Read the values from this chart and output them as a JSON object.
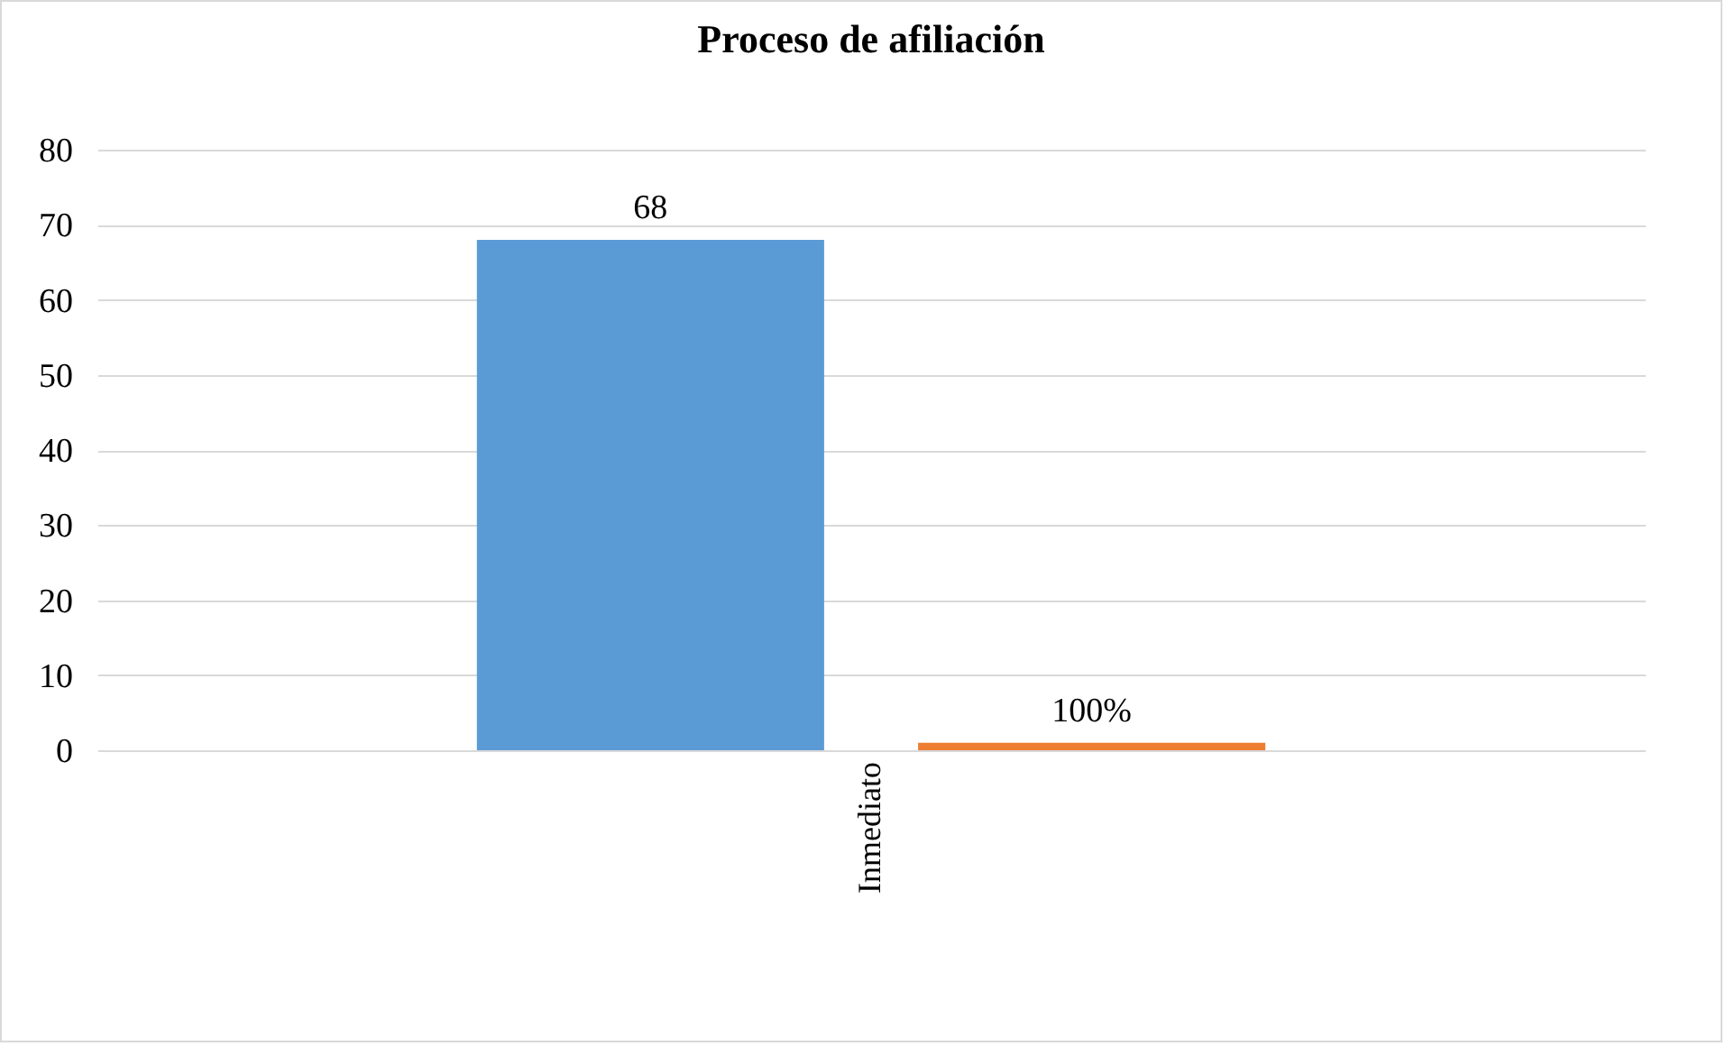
{
  "chart_data": {
    "type": "bar",
    "title": "Proceso de afiliación",
    "categories": [
      "Inmediato"
    ],
    "series": [
      {
        "color": "#5b9bd5",
        "values": [
          68
        ],
        "value_labels": [
          "68"
        ]
      },
      {
        "color": "#ed7d31",
        "values": [
          1
        ],
        "value_labels": [
          "100%"
        ]
      }
    ],
    "ylim": [
      0,
      80
    ],
    "yticks": [
      0,
      10,
      20,
      30,
      40,
      50,
      60,
      70,
      80
    ],
    "grid": "y"
  }
}
